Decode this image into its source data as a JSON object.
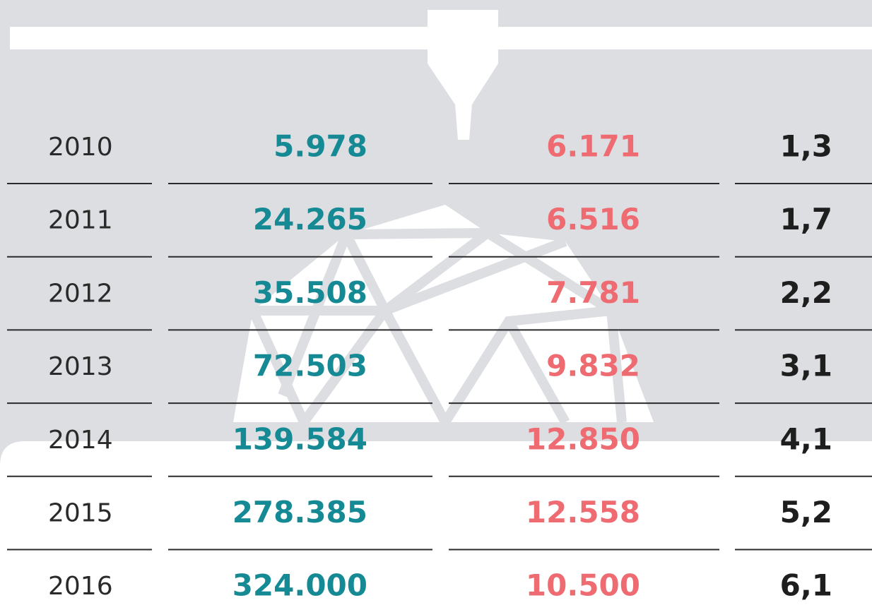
{
  "table": {
    "rows": [
      [
        "2010",
        "5.978",
        "6.171",
        "1,3"
      ],
      [
        "2011",
        "24.265",
        "6.516",
        "1,7"
      ],
      [
        "2012",
        "35.508",
        "7.781",
        "2,2"
      ],
      [
        "2013",
        "72.503",
        "9.832",
        "3,1"
      ],
      [
        "2014",
        "139.584",
        "12.850",
        "4,1"
      ],
      [
        "2015",
        "278.385",
        "12.558",
        "5,2"
      ],
      [
        "2016",
        "324.000",
        "10.500",
        "6,1"
      ]
    ]
  }
}
